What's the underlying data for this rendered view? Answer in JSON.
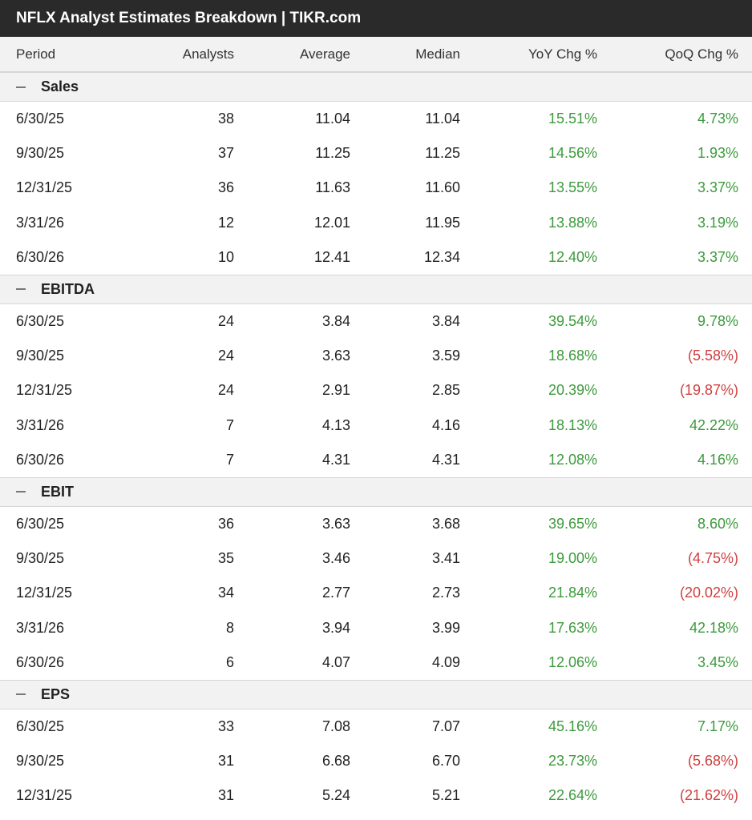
{
  "title": "NFLX Analyst Estimates Breakdown | TIKR.com",
  "columns": {
    "period": "Period",
    "analysts": "Analysts",
    "average": "Average",
    "median": "Median",
    "yoy": "YoY Chg %",
    "qoq": "QoQ Chg %"
  },
  "colors": {
    "positive": "#3d9a3d",
    "negative": "#d04040"
  },
  "sections": [
    {
      "name": "Sales",
      "rows": [
        {
          "period": "6/30/25",
          "analysts": "38",
          "average": "11.04",
          "median": "11.04",
          "yoy": "15.51%",
          "qoq": "4.73%"
        },
        {
          "period": "9/30/25",
          "analysts": "37",
          "average": "11.25",
          "median": "11.25",
          "yoy": "14.56%",
          "qoq": "1.93%"
        },
        {
          "period": "12/31/25",
          "analysts": "36",
          "average": "11.63",
          "median": "11.60",
          "yoy": "13.55%",
          "qoq": "3.37%"
        },
        {
          "period": "3/31/26",
          "analysts": "12",
          "average": "12.01",
          "median": "11.95",
          "yoy": "13.88%",
          "qoq": "3.19%"
        },
        {
          "period": "6/30/26",
          "analysts": "10",
          "average": "12.41",
          "median": "12.34",
          "yoy": "12.40%",
          "qoq": "3.37%"
        }
      ]
    },
    {
      "name": "EBITDA",
      "rows": [
        {
          "period": "6/30/25",
          "analysts": "24",
          "average": "3.84",
          "median": "3.84",
          "yoy": "39.54%",
          "qoq": "9.78%"
        },
        {
          "period": "9/30/25",
          "analysts": "24",
          "average": "3.63",
          "median": "3.59",
          "yoy": "18.68%",
          "qoq": "(5.58%)"
        },
        {
          "period": "12/31/25",
          "analysts": "24",
          "average": "2.91",
          "median": "2.85",
          "yoy": "20.39%",
          "qoq": "(19.87%)"
        },
        {
          "period": "3/31/26",
          "analysts": "7",
          "average": "4.13",
          "median": "4.16",
          "yoy": "18.13%",
          "qoq": "42.22%"
        },
        {
          "period": "6/30/26",
          "analysts": "7",
          "average": "4.31",
          "median": "4.31",
          "yoy": "12.08%",
          "qoq": "4.16%"
        }
      ]
    },
    {
      "name": "EBIT",
      "rows": [
        {
          "period": "6/30/25",
          "analysts": "36",
          "average": "3.63",
          "median": "3.68",
          "yoy": "39.65%",
          "qoq": "8.60%"
        },
        {
          "period": "9/30/25",
          "analysts": "35",
          "average": "3.46",
          "median": "3.41",
          "yoy": "19.00%",
          "qoq": "(4.75%)"
        },
        {
          "period": "12/31/25",
          "analysts": "34",
          "average": "2.77",
          "median": "2.73",
          "yoy": "21.84%",
          "qoq": "(20.02%)"
        },
        {
          "period": "3/31/26",
          "analysts": "8",
          "average": "3.94",
          "median": "3.99",
          "yoy": "17.63%",
          "qoq": "42.18%"
        },
        {
          "period": "6/30/26",
          "analysts": "6",
          "average": "4.07",
          "median": "4.09",
          "yoy": "12.06%",
          "qoq": "3.45%"
        }
      ]
    },
    {
      "name": "EPS",
      "rows": [
        {
          "period": "6/30/25",
          "analysts": "33",
          "average": "7.08",
          "median": "7.07",
          "yoy": "45.16%",
          "qoq": "7.17%"
        },
        {
          "period": "9/30/25",
          "analysts": "31",
          "average": "6.68",
          "median": "6.70",
          "yoy": "23.73%",
          "qoq": "(5.68%)"
        },
        {
          "period": "12/31/25",
          "analysts": "31",
          "average": "5.24",
          "median": "5.21",
          "yoy": "22.64%",
          "qoq": "(21.62%)"
        }
      ]
    }
  ]
}
